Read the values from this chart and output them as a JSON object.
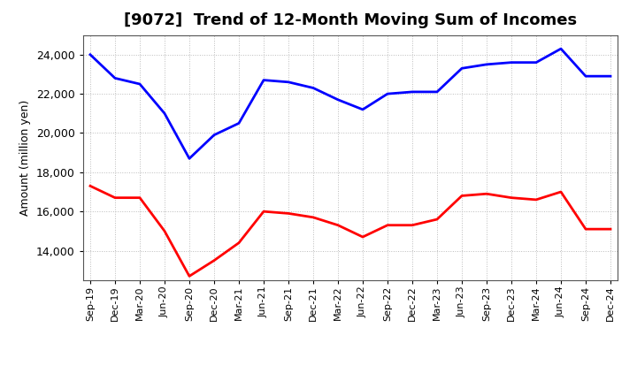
{
  "title": "[9072]  Trend of 12-Month Moving Sum of Incomes",
  "ylabel": "Amount (million yen)",
  "x_labels": [
    "Sep-19",
    "Dec-19",
    "Mar-20",
    "Jun-20",
    "Sep-20",
    "Dec-20",
    "Mar-21",
    "Jun-21",
    "Sep-21",
    "Dec-21",
    "Mar-22",
    "Jun-22",
    "Sep-22",
    "Dec-22",
    "Mar-23",
    "Jun-23",
    "Sep-23",
    "Dec-23",
    "Mar-24",
    "Jun-24",
    "Sep-24",
    "Dec-24"
  ],
  "ordinary_income": [
    24000,
    22800,
    22500,
    21000,
    18700,
    19900,
    20500,
    22700,
    22600,
    22300,
    21700,
    21200,
    22000,
    22100,
    22100,
    23300,
    23500,
    23600,
    23600,
    24300,
    22900,
    22900
  ],
  "net_income": [
    17300,
    16700,
    16700,
    15000,
    12700,
    13500,
    14400,
    16000,
    15900,
    15700,
    15300,
    14700,
    15300,
    15300,
    15600,
    16800,
    16900,
    16700,
    16600,
    17000,
    15100,
    15100
  ],
  "ordinary_color": "#0000FF",
  "net_color": "#FF0000",
  "ylim_min": 12500,
  "ylim_max": 25000,
  "yticks": [
    14000,
    16000,
    18000,
    20000,
    22000,
    24000
  ],
  "background_color": "#FFFFFF",
  "grid_color": "#AAAAAA",
  "title_fontsize": 13,
  "axis_fontsize": 9,
  "tick_fontsize": 8,
  "legend_fontsize": 10,
  "line_width": 2.0
}
